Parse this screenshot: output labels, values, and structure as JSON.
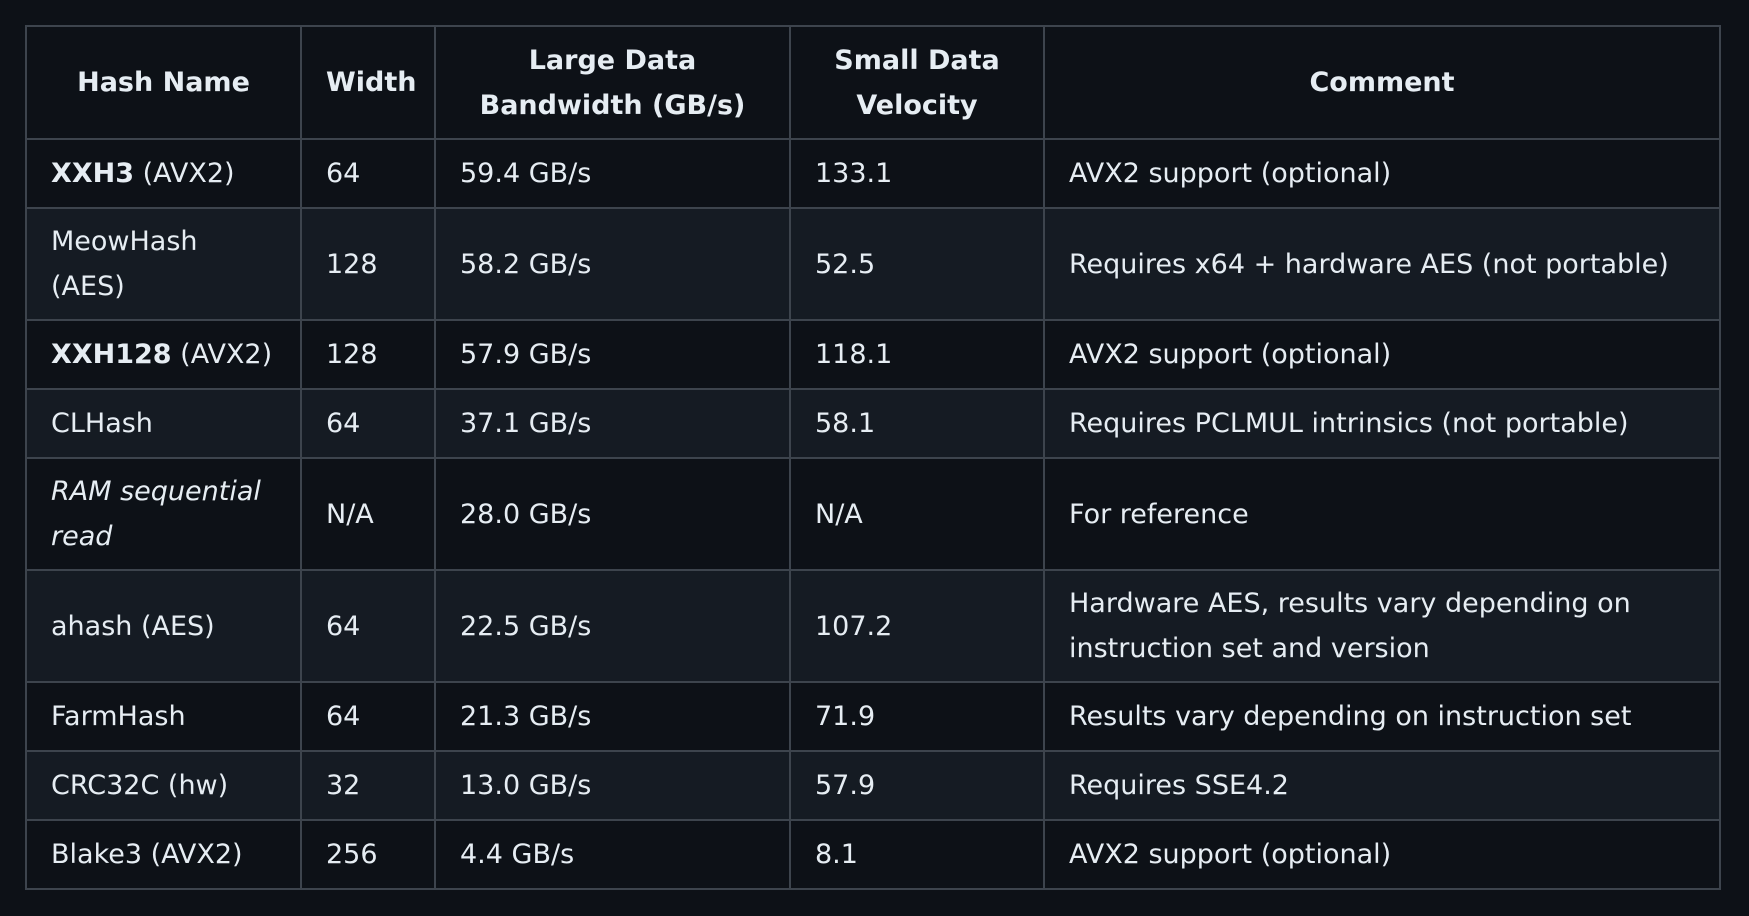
{
  "table": {
    "headers": {
      "hash_name": "Hash Name",
      "width": "Width",
      "large_bw": "Large Data Bandwidth (GB/s)",
      "small_vel": "Small Data Velocity",
      "comment": "Comment"
    },
    "rows": [
      {
        "name_bold": "XXH3",
        "name_rest": " (AVX2)",
        "width": "64",
        "bandwidth": "59.4 GB/s",
        "velocity": "133.1",
        "comment": "AVX2 support (optional)"
      },
      {
        "name_bold": "",
        "name_rest": "MeowHash (AES)",
        "width": "128",
        "bandwidth": "58.2 GB/s",
        "velocity": "52.5",
        "comment": "Requires x64 + hardware AES (not portable)"
      },
      {
        "name_bold": "XXH128",
        "name_rest": " (AVX2)",
        "width": "128",
        "bandwidth": "57.9 GB/s",
        "velocity": "118.1",
        "comment": "AVX2 support (optional)"
      },
      {
        "name_bold": "",
        "name_rest": "CLHash",
        "width": "64",
        "bandwidth": "37.1 GB/s",
        "velocity": "58.1",
        "comment": "Requires PCLMUL intrinsics (not portable)"
      },
      {
        "name_bold": "",
        "name_italic": "RAM sequential read",
        "name_rest": "",
        "width": "N/A",
        "bandwidth": "28.0 GB/s",
        "velocity": "N/A",
        "comment": "For reference"
      },
      {
        "name_bold": "",
        "name_rest": "ahash (AES)",
        "width": "64",
        "bandwidth": "22.5 GB/s",
        "velocity": "107.2",
        "comment": "Hardware AES, results vary depending on instruction set and version"
      },
      {
        "name_bold": "",
        "name_rest": "FarmHash",
        "width": "64",
        "bandwidth": "21.3 GB/s",
        "velocity": "71.9",
        "comment": "Results vary depending on instruction set"
      },
      {
        "name_bold": "",
        "name_rest": "CRC32C (hw)",
        "width": "32",
        "bandwidth": "13.0 GB/s",
        "velocity": "57.9",
        "comment": "Requires SSE4.2"
      },
      {
        "name_bold": "",
        "name_rest": "Blake3 (AVX2)",
        "width": "256",
        "bandwidth": "4.4 GB/s",
        "velocity": "8.1",
        "comment": "AVX2 support (optional)"
      }
    ]
  }
}
